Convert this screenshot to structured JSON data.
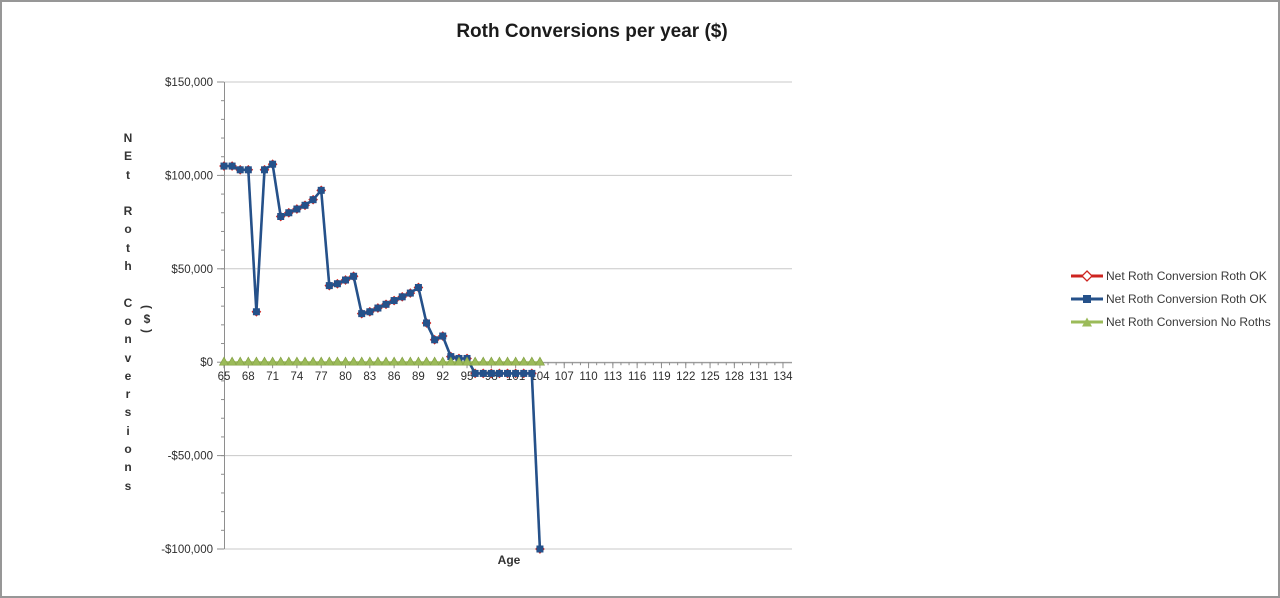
{
  "frame": {
    "background": "#ffffff",
    "border_color": "#979797",
    "grid_color": "#c8c8c8",
    "axis_color": "#8e8e8e",
    "tick_label_color": "#2e2e2e"
  },
  "chart": {
    "title": "Roth Conversions per year ($)",
    "y_axis_title": "NEt Roth Conversions",
    "y_axis_unit": "($)",
    "x_axis_title": "Age"
  },
  "legend": {
    "items": [
      {
        "label": "Net Roth Conversion Roth OK",
        "marker": "diamond",
        "color": "#ce2420"
      },
      {
        "label": "Net Roth Conversion Roth OK",
        "marker": "square",
        "color": "#25518a"
      },
      {
        "label": "Net Roth Conversion No Roths",
        "marker": "triangle",
        "color": "#9bbb59"
      }
    ]
  },
  "chart_data": {
    "type": "line",
    "title": "Roth Conversions per year ($)",
    "xlabel": "Age",
    "ylabel": "NEt Roth Conversions ($)",
    "legend_position": "right",
    "grid": true,
    "ylim": [
      -100000,
      150000
    ],
    "y_minor_step": 10000,
    "x_minor_step": 1,
    "y_ticks": [
      {
        "value": 150000,
        "label": "$150,000"
      },
      {
        "value": 100000,
        "label": "$100,000"
      },
      {
        "value": 50000,
        "label": "$50,000"
      },
      {
        "value": 0,
        "label": "$0"
      },
      {
        "value": -50000,
        "label": "-$50,000"
      },
      {
        "value": -100000,
        "label": "-$100,000"
      }
    ],
    "x_ticks": [
      65,
      68,
      71,
      74,
      77,
      80,
      83,
      86,
      89,
      92,
      95,
      98,
      101,
      104,
      107,
      110,
      113,
      116,
      119,
      122,
      125,
      128,
      131,
      134
    ],
    "x": [
      65,
      66,
      67,
      68,
      69,
      70,
      71,
      72,
      73,
      74,
      75,
      76,
      77,
      78,
      79,
      80,
      81,
      82,
      83,
      84,
      85,
      86,
      87,
      88,
      89,
      90,
      91,
      92,
      93,
      94,
      95,
      96,
      97,
      98,
      99,
      100,
      101,
      102,
      103,
      104
    ],
    "series": [
      {
        "name": "Net Roth Conversion Roth OK",
        "marker": "diamond",
        "color": "#ce2420",
        "values": [
          105000,
          105000,
          103000,
          103000,
          27000,
          103000,
          106000,
          78000,
          80000,
          82000,
          84000,
          87000,
          92000,
          41000,
          42000,
          44000,
          46000,
          26000,
          27000,
          29000,
          31000,
          33000,
          35000,
          37000,
          40000,
          21000,
          12000,
          14000,
          3000,
          2000,
          2000,
          -6000,
          -6000,
          -6000,
          -6000,
          -6000,
          -6000,
          -6000,
          -6000,
          -100000
        ]
      },
      {
        "name": "Net Roth Conversion Roth OK",
        "marker": "square",
        "color": "#25518a",
        "values": [
          105000,
          105000,
          103000,
          103000,
          27000,
          103000,
          106000,
          78000,
          80000,
          82000,
          84000,
          87000,
          92000,
          41000,
          42000,
          44000,
          46000,
          26000,
          27000,
          29000,
          31000,
          33000,
          35000,
          37000,
          40000,
          21000,
          12000,
          14000,
          3000,
          2000,
          2000,
          -6000,
          -6000,
          -6000,
          -6000,
          -6000,
          -6000,
          -6000,
          -6000,
          -100000
        ]
      },
      {
        "name": "Net Roth Conversion No Roths",
        "marker": "triangle",
        "color": "#9bbb59",
        "values": [
          0,
          0,
          0,
          0,
          0,
          0,
          0,
          0,
          0,
          0,
          0,
          0,
          0,
          0,
          0,
          0,
          0,
          0,
          0,
          0,
          0,
          0,
          0,
          0,
          0,
          0,
          0,
          0,
          0,
          0,
          0,
          0,
          0,
          0,
          0,
          0,
          0,
          0,
          0,
          0
        ]
      }
    ]
  }
}
